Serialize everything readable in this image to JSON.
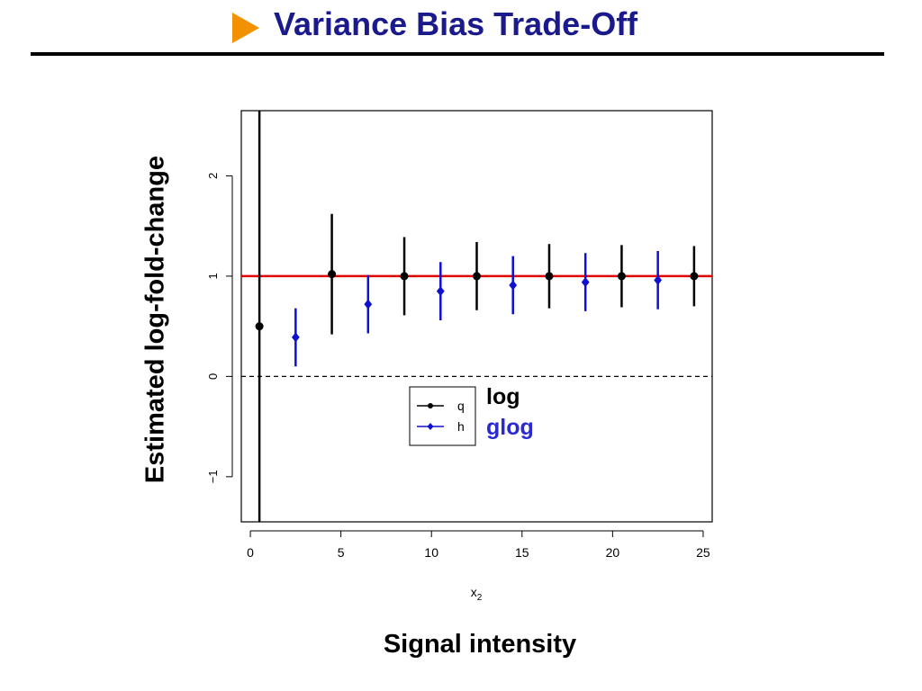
{
  "slide": {
    "title": "Variance Bias Trade-Off",
    "ylabel": "Estimated log-fold-change",
    "xlabel": "Signal intensity"
  },
  "colors": {
    "title": "#1a1a8c",
    "arrow": "#f39200",
    "series_q": "#000000",
    "series_h": "#1010d0",
    "reference_line": "#e00000"
  },
  "annotations": {
    "log": "log",
    "glog": "glog"
  },
  "chart_data": {
    "type": "scatter",
    "title": "",
    "xlabel": "x",
    "xlabel_sub": "2",
    "ylabel": "",
    "xlim": [
      -0.5,
      25.5
    ],
    "ylim": [
      -1.45,
      2.65
    ],
    "xticks": [
      0,
      5,
      10,
      15,
      20,
      25
    ],
    "yticks": [
      -1,
      0,
      1,
      2
    ],
    "reference_lines": [
      {
        "y": 1,
        "style": "solid",
        "color": "#e00000"
      },
      {
        "y": 0,
        "style": "dashed",
        "color": "#000000"
      }
    ],
    "legend": {
      "position": "center",
      "entries": [
        "q",
        "h"
      ]
    },
    "series": [
      {
        "name": "q",
        "marker": "circle",
        "color": "#000000",
        "points": [
          {
            "x": 0.5,
            "y": 0.5,
            "lo": -1.45,
            "hi": 2.65
          },
          {
            "x": 4.5,
            "y": 1.02,
            "lo": 0.42,
            "hi": 1.62
          },
          {
            "x": 8.5,
            "y": 1.0,
            "lo": 0.61,
            "hi": 1.39
          },
          {
            "x": 12.5,
            "y": 1.0,
            "lo": 0.66,
            "hi": 1.34
          },
          {
            "x": 16.5,
            "y": 1.0,
            "lo": 0.68,
            "hi": 1.32
          },
          {
            "x": 20.5,
            "y": 1.0,
            "lo": 0.69,
            "hi": 1.31
          },
          {
            "x": 24.5,
            "y": 1.0,
            "lo": 0.7,
            "hi": 1.3
          }
        ]
      },
      {
        "name": "h",
        "marker": "diamond",
        "color": "#1010d0",
        "points": [
          {
            "x": 2.5,
            "y": 0.39,
            "lo": 0.1,
            "hi": 0.68
          },
          {
            "x": 6.5,
            "y": 0.72,
            "lo": 0.43,
            "hi": 1.01
          },
          {
            "x": 10.5,
            "y": 0.85,
            "lo": 0.56,
            "hi": 1.14
          },
          {
            "x": 14.5,
            "y": 0.91,
            "lo": 0.62,
            "hi": 1.2
          },
          {
            "x": 18.5,
            "y": 0.94,
            "lo": 0.65,
            "hi": 1.23
          },
          {
            "x": 22.5,
            "y": 0.96,
            "lo": 0.67,
            "hi": 1.25
          }
        ]
      }
    ]
  }
}
